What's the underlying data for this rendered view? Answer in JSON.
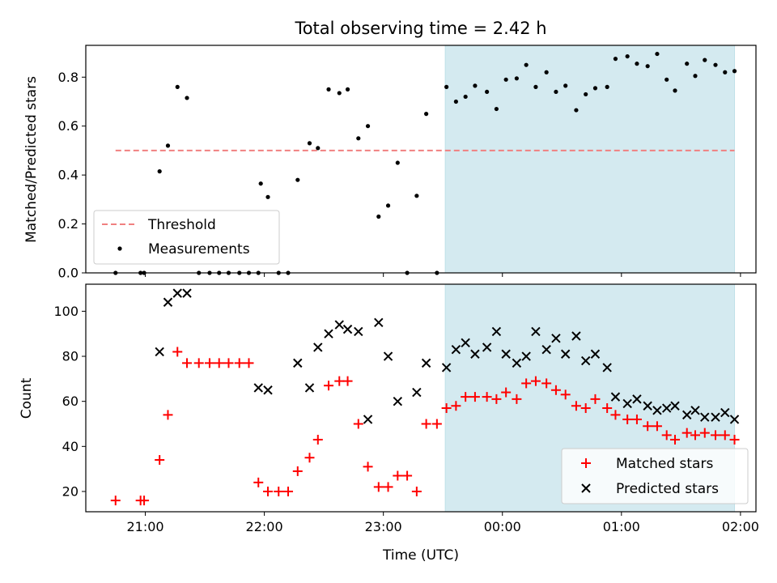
{
  "title": "Total observing time = 2.42 h",
  "xlabel": "Time (UTC)",
  "colors": {
    "shade": "#d4eaf0",
    "threshold": "#f08080",
    "matched": "#ff0000",
    "predicted": "#000000",
    "measurement": "#000000"
  },
  "chart_data": [
    {
      "type": "scatter",
      "panel": "top",
      "ylabel": "Matched/Predicted stars",
      "ylim": [
        0,
        0.93
      ],
      "yticks": [
        0.0,
        0.2,
        0.4,
        0.6,
        0.8
      ],
      "ytick_labels": [
        "0.0",
        "0.2",
        "0.4",
        "0.6",
        "0.8"
      ],
      "xlim_hours": [
        20.5,
        26.13
      ],
      "xticks_hours": [
        21,
        22,
        23,
        24,
        25,
        26
      ],
      "xtick_labels": [
        "21:00",
        "22:00",
        "23:00",
        "00:00",
        "01:00",
        "02:00"
      ],
      "shaded_span_hours": [
        23.52,
        25.95
      ],
      "threshold": {
        "name": "Threshold",
        "y": 0.5,
        "x_hours": [
          20.75,
          25.95
        ]
      },
      "series": [
        {
          "name": "Measurements",
          "x_hours": [
            20.75,
            20.96,
            20.99,
            21.12,
            21.19,
            21.27,
            21.35,
            21.45,
            21.54,
            21.62,
            21.7,
            21.79,
            21.87,
            21.95,
            21.97,
            22.03,
            22.12,
            22.2,
            22.28,
            22.38,
            22.45,
            22.54,
            22.63,
            22.7,
            22.79,
            22.87,
            22.96,
            23.04,
            23.12,
            23.2,
            23.28,
            23.36,
            23.45,
            23.53,
            23.61,
            23.69,
            23.77,
            23.87,
            23.95,
            24.03,
            24.12,
            24.2,
            24.28,
            24.37,
            24.45,
            24.53,
            24.62,
            24.7,
            24.78,
            24.88,
            24.95,
            25.05,
            25.13,
            25.22,
            25.3,
            25.38,
            25.45,
            25.55,
            25.62,
            25.7,
            25.79,
            25.87,
            25.95
          ],
          "values": [
            0.0,
            0.0,
            0.0,
            0.415,
            0.52,
            0.76,
            0.715,
            0.0,
            0.0,
            0.0,
            0.0,
            0.0,
            0.0,
            0.0,
            0.365,
            0.31,
            0.0,
            0.0,
            0.38,
            0.53,
            0.51,
            0.75,
            0.735,
            0.75,
            0.55,
            0.6,
            0.23,
            0.275,
            0.45,
            0.0,
            0.315,
            0.65,
            0.0,
            0.76,
            0.7,
            0.72,
            0.765,
            0.74,
            0.67,
            0.79,
            0.795,
            0.85,
            0.76,
            0.82,
            0.74,
            0.765,
            0.665,
            0.73,
            0.755,
            0.76,
            0.875,
            0.885,
            0.855,
            0.845,
            0.895,
            0.79,
            0.745,
            0.855,
            0.805,
            0.87,
            0.85,
            0.82,
            0.825
          ]
        }
      ]
    },
    {
      "type": "scatter",
      "panel": "bottom",
      "ylabel": "Count",
      "ylim": [
        11,
        112
      ],
      "yticks": [
        20,
        40,
        60,
        80,
        100
      ],
      "ytick_labels": [
        "20",
        "40",
        "60",
        "80",
        "100"
      ],
      "xlim_hours": [
        20.5,
        26.13
      ],
      "xticks_hours": [
        21,
        22,
        23,
        24,
        25,
        26
      ],
      "xtick_labels": [
        "21:00",
        "22:00",
        "23:00",
        "00:00",
        "01:00",
        "02:00"
      ],
      "shaded_span_hours": [
        23.52,
        25.95
      ],
      "series": [
        {
          "name": "Matched stars",
          "marker": "plus",
          "x_hours": [
            20.75,
            20.96,
            20.99,
            21.12,
            21.19,
            21.27,
            21.35,
            21.45,
            21.54,
            21.62,
            21.7,
            21.79,
            21.87,
            21.95,
            22.03,
            22.12,
            22.2,
            22.28,
            22.38,
            22.45,
            22.54,
            22.63,
            22.7,
            22.79,
            22.87,
            22.96,
            23.04,
            23.12,
            23.2,
            23.28,
            23.36,
            23.45,
            23.53,
            23.61,
            23.69,
            23.77,
            23.87,
            23.95,
            24.03,
            24.12,
            24.2,
            24.28,
            24.37,
            24.45,
            24.53,
            24.62,
            24.7,
            24.78,
            24.88,
            24.95,
            25.05,
            25.13,
            25.22,
            25.3,
            25.38,
            25.45,
            25.55,
            25.62,
            25.7,
            25.79,
            25.87,
            25.95
          ],
          "values": [
            16,
            16,
            16,
            34,
            54,
            82,
            77,
            77,
            77,
            77,
            77,
            77,
            77,
            24,
            20,
            20,
            20,
            29,
            35,
            43,
            67,
            69,
            69,
            50,
            31,
            22,
            22,
            27,
            27,
            20,
            50,
            50,
            57,
            58,
            62,
            62,
            62,
            61,
            64,
            61,
            68,
            69,
            68,
            65,
            63,
            58,
            57,
            61,
            57,
            54,
            52,
            52,
            49,
            49,
            45,
            43,
            46,
            45,
            46,
            45,
            45,
            43
          ]
        },
        {
          "name": "Predicted stars",
          "marker": "x",
          "x_hours": [
            21.12,
            21.19,
            21.27,
            21.35,
            21.95,
            22.03,
            22.28,
            22.38,
            22.45,
            22.54,
            22.63,
            22.7,
            22.79,
            22.87,
            22.96,
            23.04,
            23.12,
            23.28,
            23.36,
            23.53,
            23.61,
            23.69,
            23.77,
            23.87,
            23.95,
            24.03,
            24.12,
            24.2,
            24.28,
            24.37,
            24.45,
            24.53,
            24.62,
            24.7,
            24.78,
            24.88,
            24.95,
            25.05,
            25.13,
            25.22,
            25.3,
            25.38,
            25.45,
            25.55,
            25.62,
            25.7,
            25.79,
            25.87,
            25.95
          ],
          "values": [
            82,
            104,
            108,
            108,
            66,
            65,
            77,
            66,
            84,
            90,
            94,
            92,
            91,
            52,
            95,
            80,
            60,
            64,
            77,
            75,
            83,
            86,
            81,
            84,
            91,
            81,
            77,
            80,
            91,
            83,
            88,
            81,
            89,
            78,
            81,
            75,
            62,
            59,
            61,
            58,
            56,
            57,
            58,
            54,
            56,
            53,
            53,
            55,
            52
          ]
        }
      ]
    }
  ]
}
